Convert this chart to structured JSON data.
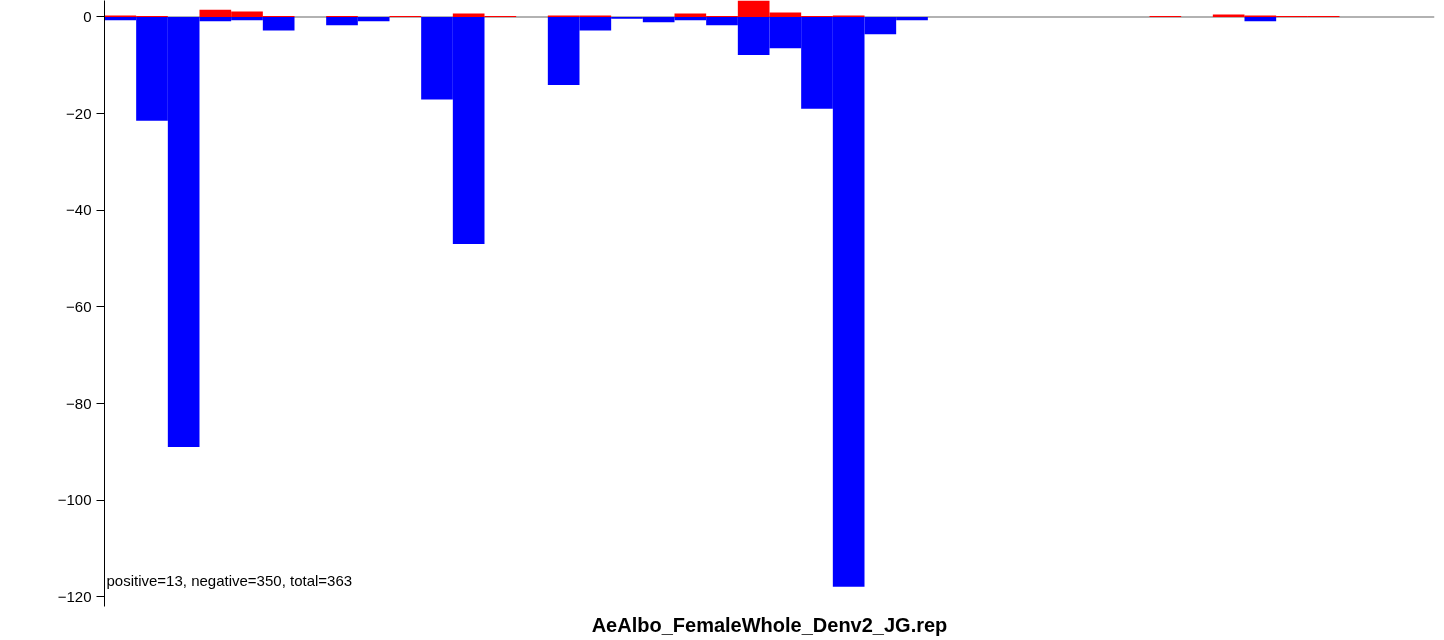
{
  "chart_data": {
    "type": "bar",
    "title": "AeAlbo_FemaleWhole_Denv2_JG.rep",
    "categories": [
      null,
      null,
      null,
      null,
      null,
      null,
      null,
      null,
      null,
      null,
      null,
      null,
      null,
      null,
      null,
      null,
      null,
      null,
      null,
      null,
      null,
      null,
      null,
      null,
      null,
      null,
      null,
      null,
      null,
      null,
      null,
      null,
      null,
      null,
      null,
      null,
      null,
      null,
      null,
      null,
      null,
      null
    ],
    "series": [
      {
        "color": "#ff0000",
        "values": [
          0.3,
          0.2,
          null,
          1.5,
          1.1,
          0.2,
          null,
          0.2,
          null,
          0.2,
          null,
          0.7,
          0.2,
          null,
          0.3,
          0.3,
          null,
          null,
          0.7,
          0.2,
          3.4,
          0.9,
          0.2,
          0.3,
          null,
          null,
          null,
          null,
          null,
          null,
          null,
          null,
          null,
          0.2,
          null,
          0.5,
          0.3,
          0.2,
          0.2,
          null,
          null,
          null
        ]
      },
      {
        "color": "#0000ff",
        "values": [
          -0.7,
          -21.5,
          -89,
          -0.9,
          -0.7,
          -2.8,
          null,
          -1.7,
          -0.9,
          null,
          -17.1,
          -47,
          null,
          null,
          -14.1,
          -2.8,
          -0.4,
          -1.1,
          -0.7,
          -1.7,
          -7.9,
          -6.5,
          -19,
          -117.9,
          -3.6,
          -0.7,
          null,
          null,
          null,
          null,
          null,
          null,
          null,
          null,
          null,
          null,
          -0.9,
          null,
          null,
          null,
          null,
          null
        ]
      }
    ],
    "ylim": [
      -122,
      3.4
    ],
    "yticks": [
      0,
      -20,
      -40,
      -60,
      -80,
      -100,
      -120
    ],
    "ref_lines": [
      {
        "axis": "y",
        "value": 0,
        "color": "#999999"
      }
    ],
    "annotations": [
      "positive=13, negative=350, total=363"
    ],
    "tick_labels": "y",
    "grid": false
  }
}
